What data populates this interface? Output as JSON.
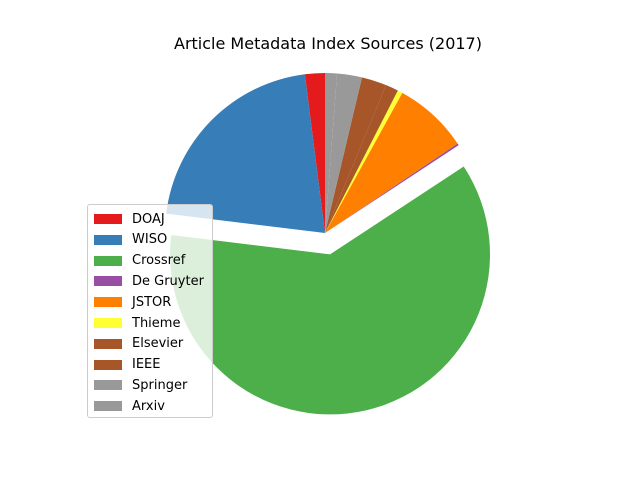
{
  "chart_data": {
    "type": "pie",
    "title": "Article Metadata Index Sources (2017)",
    "slices": [
      {
        "label": "DOAJ",
        "value": 2.0,
        "color": "#e41a1c",
        "explode": false
      },
      {
        "label": "WISO",
        "value": 21.0,
        "color": "#377eb8",
        "explode": false
      },
      {
        "label": "Crossref",
        "value": 61.0,
        "color": "#4daf4a",
        "explode": true
      },
      {
        "label": "De Gruyter",
        "value": 0.2,
        "color": "#984ea3",
        "explode": false
      },
      {
        "label": "JSTOR",
        "value": 7.5,
        "color": "#ff7f00",
        "explode": false
      },
      {
        "label": "Thieme",
        "value": 0.5,
        "color": "#ffff33",
        "explode": false
      },
      {
        "label": "Elsevier",
        "value": 1.3,
        "color": "#a65628",
        "explode": false
      },
      {
        "label": "IEEE",
        "value": 2.5,
        "color": "#a65628",
        "explode": false
      },
      {
        "label": "Springer",
        "value": 2.5,
        "color": "#999999",
        "explode": false
      },
      {
        "label": "Arxiv",
        "value": 1.2,
        "color": "#999999",
        "explode": false
      }
    ],
    "start_angle_deg": 90,
    "direction": "counterclockwise",
    "legend_position": "lower-left"
  }
}
